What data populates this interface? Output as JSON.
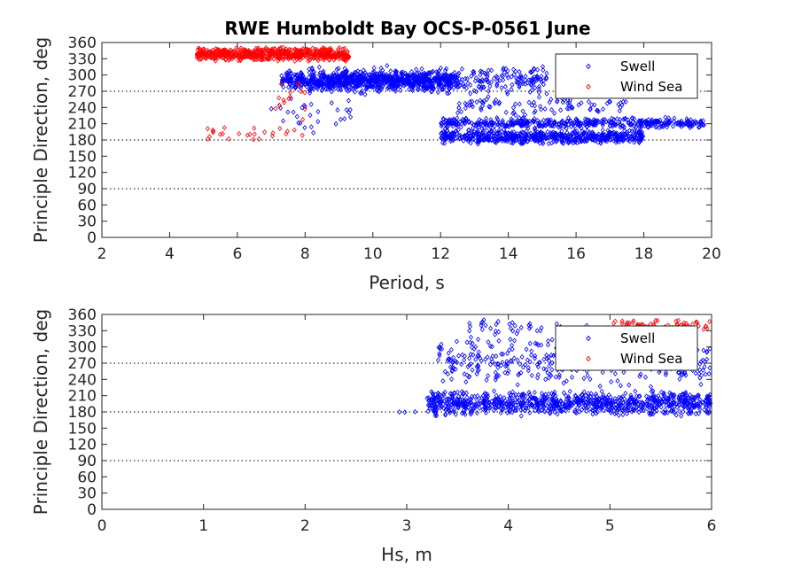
{
  "figure": {
    "title": "RWE Humboldt Bay OCS-P-0561 June"
  },
  "chart_data": [
    {
      "type": "scatter",
      "xlabel": "Period, s",
      "ylabel": "Principle Direction, deg",
      "xlim": [
        2,
        20
      ],
      "ylim": [
        0,
        360
      ],
      "xticks": [
        "2",
        "4",
        "6",
        "8",
        "10",
        "12",
        "14",
        "16",
        "18",
        "20"
      ],
      "yticks": [
        "0",
        "30",
        "60",
        "90",
        "120",
        "150",
        "180",
        "210",
        "240",
        "270",
        "300",
        "330",
        "360"
      ],
      "reference_lines_y": [
        90,
        180,
        270
      ],
      "legend_position": "top-right",
      "series": [
        {
          "name": "Swell",
          "color": "#0000ff",
          "marker": "diamond-open",
          "clusters": [
            {
              "x": [
                7.3,
                12.5
              ],
              "y": [
                272,
                308
              ],
              "n": 700
            },
            {
              "x": [
                8.0,
                15.2
              ],
              "y": [
                262,
                318
              ],
              "n": 400
            },
            {
              "x": [
                12.0,
                19.8
              ],
              "y": [
                200,
                222
              ],
              "n": 450
            },
            {
              "x": [
                12.0,
                18.0
              ],
              "y": [
                172,
                200
              ],
              "n": 600
            },
            {
              "x": [
                12.5,
                17.5
              ],
              "y": [
                225,
                265
              ],
              "n": 90
            },
            {
              "x": [
                7.0,
                9.5
              ],
              "y": [
                190,
                260
              ],
              "n": 30
            }
          ]
        },
        {
          "name": "Wind Sea",
          "color": "#ff0000",
          "marker": "diamond-open",
          "clusters": [
            {
              "x": [
                4.8,
                9.3
              ],
              "y": [
                325,
                352
              ],
              "n": 600
            },
            {
              "x": [
                5.0,
                8.0
              ],
              "y": [
                180,
                205
              ],
              "n": 25
            },
            {
              "x": [
                7.0,
                8.0
              ],
              "y": [
                210,
                300
              ],
              "n": 15
            }
          ]
        }
      ]
    },
    {
      "type": "scatter",
      "xlabel": "Hs, m",
      "ylabel": "Principle Direction, deg",
      "xlim": [
        0,
        6
      ],
      "ylim": [
        0,
        360
      ],
      "xticks": [
        "0",
        "1",
        "2",
        "3",
        "4",
        "5",
        "6"
      ],
      "yticks": [
        "0",
        "30",
        "60",
        "90",
        "120",
        "150",
        "180",
        "210",
        "240",
        "270",
        "300",
        "330",
        "360"
      ],
      "reference_lines_y": [
        90,
        180,
        270
      ],
      "legend_position": "top-right",
      "series": [
        {
          "name": "Swell",
          "color": "#0000ff",
          "marker": "diamond-open",
          "clusters": [
            {
              "x": [
                3.2,
                6.0
              ],
              "y": [
                172,
                220
              ],
              "n": 900
            },
            {
              "x": [
                3.3,
                6.0
              ],
              "y": [
                225,
                320
              ],
              "n": 350
            },
            {
              "x": [
                3.6,
                5.0
              ],
              "y": [
                320,
                352
              ],
              "n": 40
            },
            {
              "x": [
                2.9,
                3.1
              ],
              "y": [
                178,
                182
              ],
              "n": 3
            }
          ]
        },
        {
          "name": "Wind Sea",
          "color": "#ff0000",
          "marker": "diamond-open",
          "clusters": [
            {
              "x": [
                5.0,
                6.0
              ],
              "y": [
                330,
                352
              ],
              "n": 60
            }
          ]
        }
      ]
    }
  ]
}
